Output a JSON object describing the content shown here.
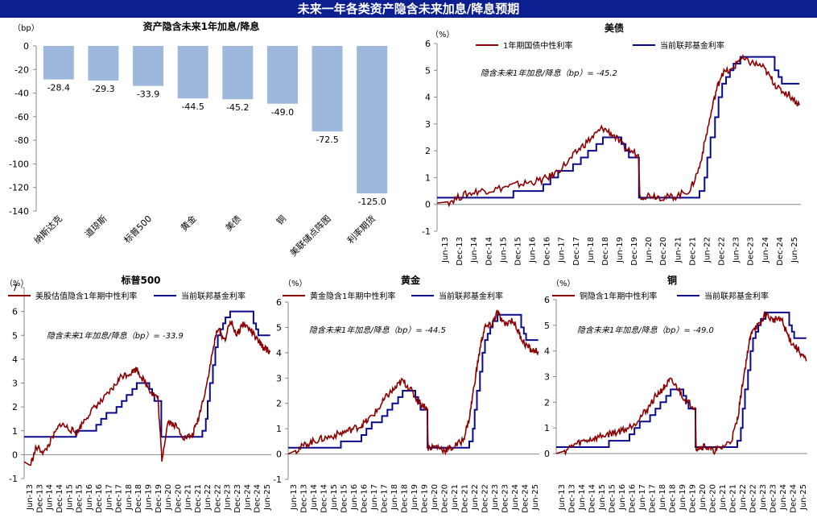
{
  "page_title": "未来一年各类资产隐含未来加息/降息预期",
  "colors": {
    "title_bg": "#0b1f8f",
    "bar": "#9db8dc",
    "implied": "#8b0000",
    "fed": "#0a0a8c"
  },
  "x_ticks": [
    "Jun-13",
    "Dec-13",
    "Jun-14",
    "Dec-14",
    "Jun-15",
    "Dec-15",
    "Jun-16",
    "Dec-16",
    "Jun-17",
    "Dec-17",
    "Jun-18",
    "Dec-18",
    "Jun-19",
    "Dec-19",
    "Jun-20",
    "Dec-20",
    "Jun-21",
    "Dec-21",
    "Jun-22",
    "Dec-22",
    "Jun-23",
    "Dec-23",
    "Jun-24",
    "Dec-24",
    "Jun-25"
  ],
  "fed_rate": [
    [
      2013.4,
      0.25
    ],
    [
      2015.96,
      0.25
    ],
    [
      2015.96,
      0.5
    ],
    [
      2016.96,
      0.5
    ],
    [
      2016.96,
      0.75
    ],
    [
      2017.2,
      0.75
    ],
    [
      2017.2,
      1.0
    ],
    [
      2017.46,
      1.0
    ],
    [
      2017.46,
      1.25
    ],
    [
      2017.96,
      1.25
    ],
    [
      2017.96,
      1.5
    ],
    [
      2018.22,
      1.5
    ],
    [
      2018.22,
      1.75
    ],
    [
      2018.46,
      1.75
    ],
    [
      2018.46,
      2.0
    ],
    [
      2018.74,
      2.0
    ],
    [
      2018.74,
      2.25
    ],
    [
      2018.96,
      2.25
    ],
    [
      2018.96,
      2.5
    ],
    [
      2019.58,
      2.5
    ],
    [
      2019.58,
      2.25
    ],
    [
      2019.72,
      2.25
    ],
    [
      2019.72,
      2.0
    ],
    [
      2019.83,
      2.0
    ],
    [
      2019.83,
      1.75
    ],
    [
      2020.17,
      1.75
    ],
    [
      2020.17,
      0.25
    ],
    [
      2022.2,
      0.25
    ],
    [
      2022.2,
      0.5
    ],
    [
      2022.37,
      0.5
    ],
    [
      2022.37,
      1.0
    ],
    [
      2022.46,
      1.0
    ],
    [
      2022.46,
      1.75
    ],
    [
      2022.57,
      1.75
    ],
    [
      2022.57,
      2.5
    ],
    [
      2022.72,
      2.5
    ],
    [
      2022.72,
      3.25
    ],
    [
      2022.84,
      3.25
    ],
    [
      2022.84,
      4.0
    ],
    [
      2022.96,
      4.0
    ],
    [
      2022.96,
      4.5
    ],
    [
      2023.09,
      4.5
    ],
    [
      2023.09,
      4.75
    ],
    [
      2023.22,
      4.75
    ],
    [
      2023.22,
      5.0
    ],
    [
      2023.34,
      5.0
    ],
    [
      2023.34,
      5.25
    ],
    [
      2023.57,
      5.25
    ],
    [
      2023.57,
      5.5
    ],
    [
      2024.72,
      5.5
    ],
    [
      2024.72,
      5.0
    ],
    [
      2024.85,
      5.0
    ],
    [
      2024.85,
      4.75
    ],
    [
      2024.96,
      4.75
    ],
    [
      2024.96,
      4.5
    ],
    [
      2025.55,
      4.5
    ]
  ],
  "chart_data": [
    {
      "type": "bar",
      "title": "资产隐含未来1年加息/降息",
      "ylabel": "（bp）",
      "categories": [
        "纳斯达克",
        "道琼斯",
        "标普500",
        "黄金",
        "美债",
        "铜",
        "美联储点阵图",
        "利率期货"
      ],
      "values": [
        -28.4,
        -29.3,
        -33.9,
        -44.5,
        -45.2,
        -49.0,
        -72.5,
        -125.0
      ],
      "value_labels": [
        "-28.4",
        "-29.3",
        "-33.9",
        "-44.5",
        "-45.2",
        "-49.0",
        "-72.5",
        "-125.0"
      ],
      "ylim": [
        -140,
        0
      ],
      "yticks": [
        0,
        -20,
        -40,
        -60,
        -80,
        -100,
        -120,
        -140
      ]
    },
    {
      "type": "line",
      "title": "美债",
      "unit": "（%）",
      "legend": [
        "1年期国债中性利率",
        "当前联邦基金利率"
      ],
      "annotation": "隐含未来1年加息/降息（bp）= -45.2",
      "ylim": [
        -1,
        6
      ],
      "yticks": [
        -1,
        0,
        1,
        2,
        3,
        4,
        5,
        6
      ],
      "series": [
        {
          "name": "1年期国债中性利率",
          "points": [
            [
              2013.4,
              0.05
            ],
            [
              2013.8,
              0.1
            ],
            [
              2014.3,
              0.35
            ],
            [
              2014.8,
              0.5
            ],
            [
              2015.3,
              0.55
            ],
            [
              2015.9,
              0.7
            ],
            [
              2016.4,
              0.8
            ],
            [
              2016.9,
              0.9
            ],
            [
              2017.3,
              1.1
            ],
            [
              2017.8,
              1.6
            ],
            [
              2018.2,
              2.1
            ],
            [
              2018.6,
              2.5
            ],
            [
              2018.95,
              2.85
            ],
            [
              2019.3,
              2.6
            ],
            [
              2019.7,
              2.1
            ],
            [
              2020.15,
              1.85
            ],
            [
              2020.2,
              0.3
            ],
            [
              2020.6,
              0.35
            ],
            [
              2021.0,
              0.25
            ],
            [
              2021.4,
              0.3
            ],
            [
              2021.9,
              0.55
            ],
            [
              2022.2,
              1.4
            ],
            [
              2022.45,
              2.7
            ],
            [
              2022.75,
              4.2
            ],
            [
              2022.95,
              4.9
            ],
            [
              2023.3,
              5.0
            ],
            [
              2023.55,
              5.45
            ],
            [
              2023.9,
              5.3
            ],
            [
              2024.3,
              5.15
            ],
            [
              2024.6,
              4.7
            ],
            [
              2024.85,
              4.3
            ],
            [
              2025.2,
              4.1
            ],
            [
              2025.55,
              3.7
            ]
          ]
        },
        {
          "name": "当前联邦基金利率",
          "ref": "fed_rate"
        }
      ]
    },
    {
      "type": "line",
      "title": "标普500",
      "unit": "（%）",
      "legend": [
        "美股估值隐含1年期中性利率",
        "当前联邦基金利率"
      ],
      "annotation": "隐含未来1年加息/降息（bp）= -33.9",
      "ylim": [
        -1,
        7
      ],
      "yticks": [
        -1,
        0,
        1,
        2,
        3,
        4,
        5,
        6,
        7
      ],
      "series": [
        {
          "name": "美股估值隐含1年期中性利率",
          "points": [
            [
              2013.4,
              -0.3
            ],
            [
              2013.7,
              -0.45
            ],
            [
              2014.0,
              0.3
            ],
            [
              2014.4,
              0.1
            ],
            [
              2014.8,
              0.7
            ],
            [
              2015.2,
              1.3
            ],
            [
              2015.6,
              1.1
            ],
            [
              2016.0,
              0.9
            ],
            [
              2016.4,
              1.5
            ],
            [
              2016.9,
              2.0
            ],
            [
              2017.3,
              2.3
            ],
            [
              2017.8,
              2.8
            ],
            [
              2018.2,
              3.3
            ],
            [
              2018.6,
              3.4
            ],
            [
              2018.95,
              3.6
            ],
            [
              2019.3,
              3.1
            ],
            [
              2019.7,
              2.6
            ],
            [
              2020.0,
              2.4
            ],
            [
              2020.2,
              -0.2
            ],
            [
              2020.5,
              1.4
            ],
            [
              2020.9,
              1.2
            ],
            [
              2021.3,
              0.7
            ],
            [
              2021.7,
              0.8
            ],
            [
              2022.0,
              1.5
            ],
            [
              2022.4,
              2.9
            ],
            [
              2022.75,
              4.5
            ],
            [
              2022.95,
              5.3
            ],
            [
              2023.3,
              4.8
            ],
            [
              2023.6,
              5.6
            ],
            [
              2023.9,
              5.0
            ],
            [
              2024.2,
              5.5
            ],
            [
              2024.6,
              5.2
            ],
            [
              2024.9,
              4.8
            ],
            [
              2025.2,
              4.5
            ],
            [
              2025.55,
              4.3
            ]
          ]
        },
        {
          "name": "当前联邦基金利率",
          "ref": "fed_rate",
          "offset": 0.5
        }
      ]
    },
    {
      "type": "line",
      "title": "黄金",
      "unit": "（%）",
      "legend": [
        "黄金隐含1年期中性利率",
        "当前联邦基金利率"
      ],
      "annotation": "隐含未来1年加息/降息（bp）= -44.5",
      "ylim": [
        -1,
        6
      ],
      "yticks": [
        -1,
        0,
        1,
        2,
        3,
        4,
        5,
        6
      ],
      "series": [
        {
          "name": "黄金隐含1年期中性利率",
          "points": [
            [
              2013.4,
              0.0
            ],
            [
              2013.8,
              0.15
            ],
            [
              2014.3,
              0.4
            ],
            [
              2014.8,
              0.55
            ],
            [
              2015.3,
              0.65
            ],
            [
              2015.9,
              0.8
            ],
            [
              2016.4,
              0.95
            ],
            [
              2016.9,
              1.1
            ],
            [
              2017.3,
              1.35
            ],
            [
              2017.8,
              1.8
            ],
            [
              2018.2,
              2.3
            ],
            [
              2018.6,
              2.6
            ],
            [
              2018.95,
              2.9
            ],
            [
              2019.3,
              2.6
            ],
            [
              2019.7,
              2.1
            ],
            [
              2020.15,
              1.8
            ],
            [
              2020.2,
              0.25
            ],
            [
              2020.6,
              0.3
            ],
            [
              2021.0,
              0.15
            ],
            [
              2021.4,
              0.25
            ],
            [
              2021.9,
              0.55
            ],
            [
              2022.2,
              1.4
            ],
            [
              2022.45,
              2.8
            ],
            [
              2022.75,
              4.3
            ],
            [
              2022.95,
              5.0
            ],
            [
              2023.3,
              5.1
            ],
            [
              2023.55,
              5.6
            ],
            [
              2023.9,
              5.1
            ],
            [
              2024.3,
              5.3
            ],
            [
              2024.6,
              4.8
            ],
            [
              2024.85,
              4.4
            ],
            [
              2025.2,
              4.1
            ],
            [
              2025.55,
              4.05
            ]
          ]
        },
        {
          "name": "当前联邦基金利率",
          "ref": "fed_rate"
        }
      ]
    },
    {
      "type": "line",
      "title": "铜",
      "unit": "（%）",
      "legend": [
        "铜隐含1年期中性利率",
        "当前联邦基金利率"
      ],
      "annotation": "隐含未来1年加息/降息（bp）= -49.0",
      "ylim": [
        0,
        6
      ],
      "yticks": [
        0,
        1,
        2,
        3,
        4,
        5,
        6
      ],
      "series": [
        {
          "name": "铜隐含1年期中性利率",
          "points": [
            [
              2013.4,
              0.0
            ],
            [
              2013.8,
              0.1
            ],
            [
              2014.3,
              0.35
            ],
            [
              2014.8,
              0.5
            ],
            [
              2015.3,
              0.6
            ],
            [
              2015.9,
              0.75
            ],
            [
              2016.4,
              0.85
            ],
            [
              2016.9,
              1.0
            ],
            [
              2017.3,
              1.25
            ],
            [
              2017.8,
              1.7
            ],
            [
              2018.2,
              2.2
            ],
            [
              2018.6,
              2.55
            ],
            [
              2018.95,
              2.85
            ],
            [
              2019.3,
              2.55
            ],
            [
              2019.7,
              2.05
            ],
            [
              2020.15,
              1.8
            ],
            [
              2020.2,
              0.2
            ],
            [
              2020.6,
              0.3
            ],
            [
              2021.0,
              0.1
            ],
            [
              2021.4,
              0.2
            ],
            [
              2021.9,
              0.5
            ],
            [
              2022.2,
              1.3
            ],
            [
              2022.45,
              2.7
            ],
            [
              2022.75,
              4.2
            ],
            [
              2022.95,
              4.9
            ],
            [
              2023.3,
              5.0
            ],
            [
              2023.55,
              5.45
            ],
            [
              2023.9,
              5.2
            ],
            [
              2024.3,
              5.3
            ],
            [
              2024.6,
              4.7
            ],
            [
              2024.85,
              4.3
            ],
            [
              2025.2,
              4.0
            ],
            [
              2025.55,
              3.6
            ]
          ]
        },
        {
          "name": "当前联邦基金利率",
          "ref": "fed_rate"
        }
      ]
    }
  ]
}
